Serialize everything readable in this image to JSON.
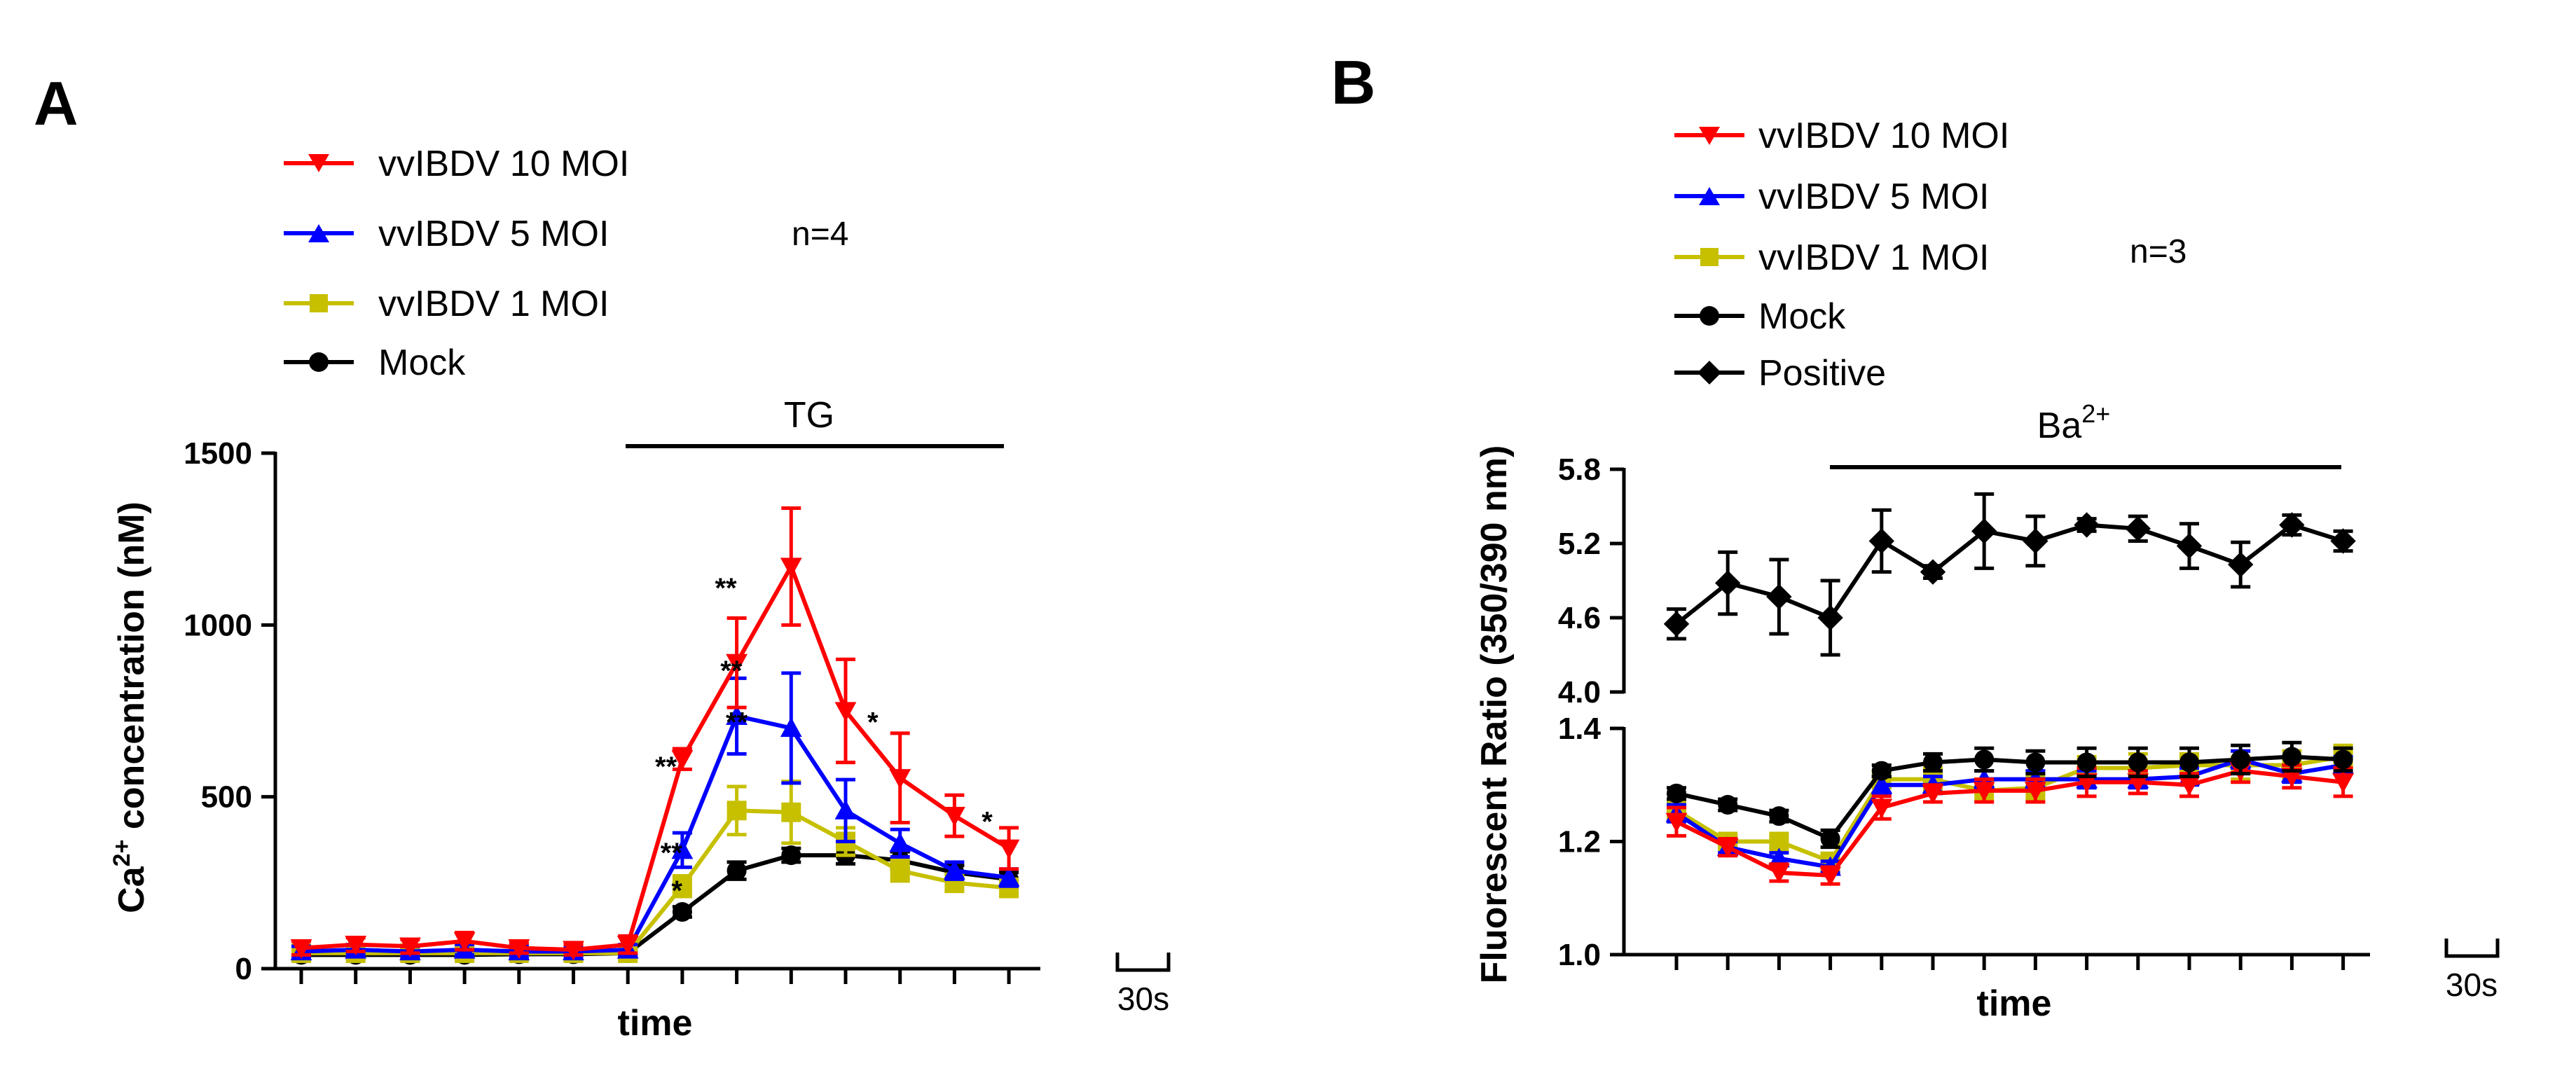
{
  "panel_a": {
    "letter": "A",
    "n_label": "n=4",
    "treatment_label": "TG",
    "scale_label": "30s"
  },
  "panel_b": {
    "letter": "B",
    "n_label": "n=3",
    "treatment_label_base": "Ba",
    "treatment_label_sup": "2+",
    "scale_label": "30s"
  },
  "chart_data": [
    {
      "type": "line",
      "panel": "A",
      "title": "",
      "xlabel": "time",
      "ylabel_base": "Ca",
      "ylabel_sup": "2+",
      "ylabel_rest": " concentration (nM)",
      "ylim": [
        0,
        1500
      ],
      "yticks": [
        0,
        500,
        1000,
        1500
      ],
      "ytick_labels": [
        "0",
        "500",
        "1000",
        "1500"
      ],
      "x": [
        1,
        2,
        3,
        4,
        5,
        6,
        7,
        8,
        9,
        10,
        11,
        12,
        13,
        14
      ],
      "legend_position": "top-left",
      "series": [
        {
          "name": "vvIBDV 10 MOI",
          "color": "#ff0000",
          "marker": "triangle-down",
          "values": [
            60,
            70,
            65,
            80,
            60,
            55,
            70,
            610,
            890,
            1170,
            750,
            555,
            445,
            350
          ],
          "errors": [
            20,
            20,
            20,
            25,
            15,
            15,
            25,
            30,
            130,
            170,
            150,
            130,
            60,
            60
          ]
        },
        {
          "name": "vvIBDV 5 MOI",
          "color": "#0000ff",
          "marker": "triangle-up",
          "values": [
            50,
            55,
            50,
            55,
            50,
            50,
            55,
            345,
            735,
            700,
            460,
            365,
            285,
            265
          ],
          "errors": [
            15,
            15,
            15,
            15,
            15,
            15,
            15,
            50,
            110,
            160,
            90,
            40,
            25,
            25
          ]
        },
        {
          "name": "vvIBDV 1 MOI",
          "color": "#c6c000",
          "marker": "square",
          "values": [
            45,
            45,
            45,
            45,
            45,
            45,
            45,
            240,
            460,
            455,
            370,
            285,
            250,
            235
          ],
          "errors": [
            10,
            10,
            10,
            10,
            10,
            10,
            10,
            30,
            70,
            90,
            40,
            30,
            25,
            25
          ]
        },
        {
          "name": "Mock",
          "color": "#000000",
          "marker": "circle",
          "values": [
            40,
            40,
            40,
            40,
            42,
            42,
            45,
            165,
            285,
            330,
            330,
            315,
            280,
            260
          ],
          "errors": [
            10,
            10,
            10,
            10,
            10,
            10,
            10,
            15,
            25,
            20,
            25,
            25,
            20,
            20
          ]
        }
      ],
      "annotations": [
        {
          "text": "**",
          "x": 7.7,
          "y": 560
        },
        {
          "text": "**",
          "x": 7.8,
          "y": 310
        },
        {
          "text": "*",
          "x": 7.9,
          "y": 200
        },
        {
          "text": "**",
          "x": 8.8,
          "y": 1080
        },
        {
          "text": "**",
          "x": 8.9,
          "y": 840
        },
        {
          "text": "**",
          "x": 9.0,
          "y": 690
        },
        {
          "text": "*",
          "x": 11.5,
          "y": 690
        },
        {
          "text": "*",
          "x": 13.6,
          "y": 400
        }
      ]
    },
    {
      "type": "line",
      "panel": "B",
      "title": "",
      "xlabel": "time",
      "ylabel": "Fluorescent Ratio (350/390 nm)",
      "ylim_top": [
        4.0,
        5.8
      ],
      "ylim_bottom": [
        1.0,
        1.4
      ],
      "yticks_top": [
        "4.0",
        "4.6",
        "5.2",
        "5.8"
      ],
      "yticks_bottom": [
        "1.0",
        "1.2",
        "1.4"
      ],
      "x": [
        1,
        2,
        3,
        4,
        5,
        6,
        7,
        8,
        9,
        10,
        11,
        12,
        13,
        14
      ],
      "legend_position": "top-left",
      "series": [
        {
          "name": "vvIBDV 10 MOI",
          "color": "#ff0000",
          "marker": "triangle-down",
          "values": [
            1.235,
            1.19,
            1.145,
            1.14,
            1.26,
            1.285,
            1.29,
            1.29,
            1.305,
            1.305,
            1.3,
            1.325,
            1.315,
            1.305
          ],
          "errors": [
            0.025,
            0.015,
            0.015,
            0.015,
            0.02,
            0.015,
            0.02,
            0.02,
            0.025,
            0.02,
            0.02,
            0.02,
            0.02,
            0.025
          ]
        },
        {
          "name": "vvIBDV 5 MOI",
          "color": "#0000ff",
          "marker": "triangle-up",
          "values": [
            1.25,
            1.19,
            1.17,
            1.155,
            1.3,
            1.3,
            1.31,
            1.31,
            1.31,
            1.31,
            1.315,
            1.345,
            1.32,
            1.335
          ],
          "errors": [
            0.015,
            0.01,
            0.01,
            0.01,
            0.015,
            0.015,
            0.015,
            0.015,
            0.015,
            0.015,
            0.015,
            0.015,
            0.015,
            0.015
          ]
        },
        {
          "name": "vvIBDV 1 MOI",
          "color": "#c6c000",
          "marker": "square",
          "values": [
            1.255,
            1.2,
            1.2,
            1.165,
            1.31,
            1.31,
            1.29,
            1.295,
            1.33,
            1.33,
            1.335,
            1.335,
            1.335,
            1.35
          ],
          "errors": [
            0.015,
            0.01,
            0.01,
            0.01,
            0.015,
            0.02,
            0.02,
            0.02,
            0.02,
            0.025,
            0.02,
            0.025,
            0.025,
            0.02
          ]
        },
        {
          "name": "Mock",
          "color": "#000000",
          "marker": "circle",
          "values": [
            1.285,
            1.265,
            1.245,
            1.205,
            1.325,
            1.34,
            1.345,
            1.34,
            1.34,
            1.34,
            1.34,
            1.345,
            1.35,
            1.345
          ],
          "errors": [
            0.01,
            0.01,
            0.01,
            0.015,
            0.01,
            0.015,
            0.02,
            0.02,
            0.025,
            0.025,
            0.025,
            0.025,
            0.025,
            0.02
          ]
        },
        {
          "name": "Positive",
          "color": "#000000",
          "marker": "diamond",
          "values": [
            4.55,
            4.88,
            4.77,
            4.6,
            5.22,
            4.97,
            5.3,
            5.22,
            5.35,
            5.32,
            5.18,
            5.03,
            5.35,
            5.22
          ],
          "errors": [
            0.12,
            0.25,
            0.3,
            0.3,
            0.25,
            0.05,
            0.3,
            0.2,
            0.05,
            0.1,
            0.18,
            0.18,
            0.08,
            0.08
          ]
        }
      ]
    }
  ]
}
